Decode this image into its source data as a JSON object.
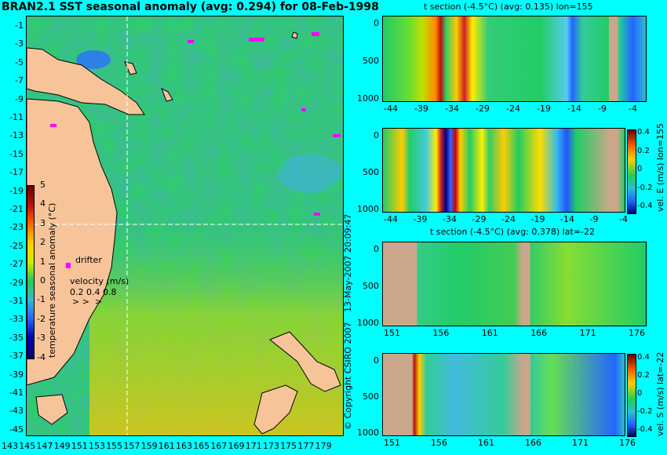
{
  "map": {
    "title": "BRAN2.1 SST seasonal anomaly (avg: 0.294) for 08-Feb-1998",
    "lat_labels": [
      "-1",
      "-3",
      "-5",
      "-7",
      "-9",
      "-11",
      "-13",
      "-15",
      "-17",
      "-19",
      "-21",
      "-23",
      "-25",
      "-27",
      "-29",
      "-31",
      "-33",
      "-35",
      "-37",
      "-39",
      "-41",
      "-43",
      "-45"
    ],
    "lon_labels": [
      "143",
      "145",
      "147",
      "149",
      "151",
      "153",
      "155",
      "157",
      "159",
      "161",
      "163",
      "165",
      "167",
      "169",
      "171",
      "173",
      "175",
      "177",
      "179"
    ],
    "colorbar": {
      "label": "temperature seasonal anomaly (°C)",
      "ticks": [
        "5",
        "4",
        "3",
        "2",
        "1",
        "0",
        "-1",
        "-2",
        "-3",
        "-4"
      ],
      "colors": [
        "#6b0000",
        "#b81010",
        "#ff6600",
        "#ffcc00",
        "#ccee00",
        "#22cc55",
        "#33bbcc",
        "#2266ff",
        "#0000aa",
        "#000066"
      ]
    },
    "drifter_label": "drifter",
    "velocity_label": "velocity (m/s)",
    "velocity_values": "0.2 0.4 0.8",
    "crosshair": {
      "lon": 155,
      "lat": -22
    },
    "land_color": "#f7c49a",
    "drifter_color": "#ff00ff"
  },
  "credits": {
    "date": "13-May-2007 20:09:47",
    "copyright": "© Copyright CSIRO 2007"
  },
  "sections": [
    {
      "title": "t section (-4.5°C) (avg: 0.135) lon=155",
      "x_labels": [
        "-44",
        "-39",
        "-34",
        "-29",
        "-24",
        "-19",
        "-14",
        "-9",
        "-4"
      ],
      "y_labels": [
        "0",
        "500",
        "1000"
      ]
    },
    {
      "title": "",
      "x_labels": [
        "-44",
        "-39",
        "-34",
        "-29",
        "-24",
        "-19",
        "-14",
        "-9",
        "-4"
      ],
      "y_labels": [
        "0",
        "500",
        "1000"
      ],
      "colorbar_label": "vel. E (m/s) lon=155",
      "colorbar_ticks": [
        "0.4",
        "0.2",
        "0",
        "-0.2",
        "-0.4"
      ]
    },
    {
      "title": "t section (-4.5°C) (avg: 0.378) lat=-22",
      "x_labels": [
        "151",
        "156",
        "161",
        "166",
        "171",
        "176"
      ],
      "y_labels": [
        "0",
        "500",
        "1000"
      ]
    },
    {
      "title": "",
      "x_labels": [
        "151",
        "156",
        "161",
        "166",
        "171",
        "176"
      ],
      "y_labels": [
        "0",
        "500",
        "1000"
      ],
      "colorbar_label": "vel. S (m/s) lat=-22",
      "colorbar_ticks": [
        "0.4",
        "0.2",
        "0",
        "-0.2",
        "-0.4"
      ]
    }
  ]
}
